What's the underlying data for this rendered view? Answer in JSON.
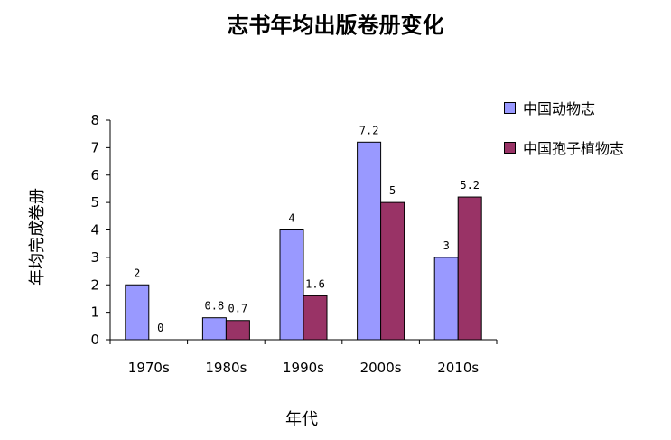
{
  "chart_data": {
    "type": "bar",
    "title": "志书年均出版卷册变化",
    "xlabel": "年代",
    "ylabel": "年均完成卷册",
    "categories": [
      "1970s",
      "1980s",
      "1990s",
      "2000s",
      "2010s"
    ],
    "series": [
      {
        "name": "中国动物志",
        "values": [
          2,
          0.8,
          4,
          7.2,
          3
        ],
        "labels": [
          "2",
          "0.8",
          "4",
          "7.2",
          "3"
        ],
        "color": "#9999FF"
      },
      {
        "name": "中国孢子植物志",
        "values": [
          0,
          0.7,
          1.6,
          5,
          5.2
        ],
        "labels": [
          "0",
          "0.7",
          "1.6",
          "5",
          "5.2"
        ],
        "color": "#993366"
      }
    ],
    "ylim": [
      0,
      8
    ],
    "yticks": [
      "0",
      "1",
      "2",
      "3",
      "4",
      "5",
      "6",
      "7",
      "8"
    ],
    "grid": false,
    "legend_position": "right"
  }
}
